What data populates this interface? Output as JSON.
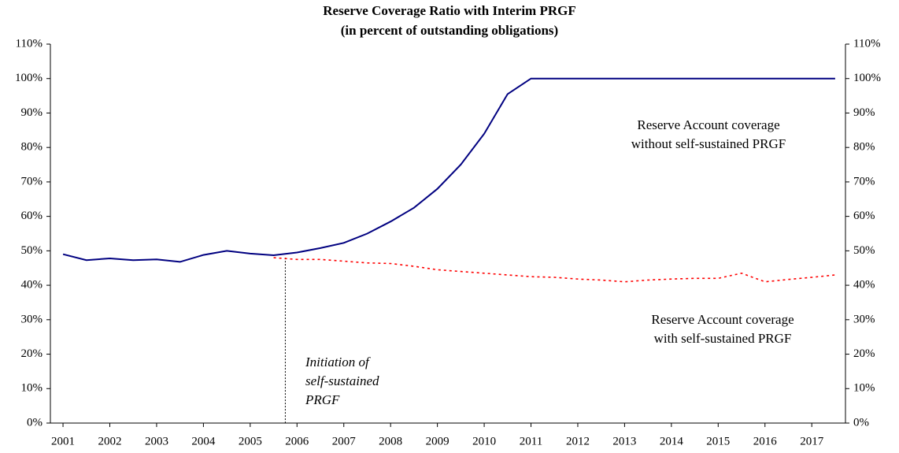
{
  "chart_data": {
    "type": "line",
    "title": [
      "Reserve Coverage Ratio with Interim PRGF",
      "(in percent of outstanding obligations)"
    ],
    "x": [
      2001,
      2001.5,
      2002,
      2002.5,
      2003,
      2003.5,
      2004,
      2004.5,
      2005,
      2005.5,
      2006,
      2006.5,
      2007,
      2007.5,
      2008,
      2008.5,
      2009,
      2009.5,
      2010,
      2010.5,
      2011,
      2011.5,
      2012,
      2012.5,
      2013,
      2013.5,
      2014,
      2014.5,
      2015,
      2015.5,
      2016,
      2016.5,
      2017,
      2017.5
    ],
    "series": [
      {
        "name": "Reserve Account coverage without self-sustained PRGF",
        "color": "#000080",
        "style": "solid",
        "values": [
          49,
          47.3,
          47.8,
          47.3,
          47.5,
          46.8,
          48.8,
          50,
          49.2,
          48.7,
          49.5,
          50.8,
          52.3,
          55,
          58.5,
          62.5,
          68,
          75,
          84,
          95.5,
          100,
          100,
          100,
          100,
          100,
          100,
          100,
          100,
          100,
          100,
          100,
          100,
          100,
          100
        ]
      },
      {
        "name": "Reserve Account coverage with self-sustained PRGF",
        "color": "#ff0000",
        "style": "dotted",
        "values": [
          null,
          null,
          null,
          null,
          null,
          null,
          null,
          null,
          null,
          48,
          47.5,
          47.5,
          47,
          46.5,
          46.3,
          45.5,
          44.5,
          44,
          43.5,
          43,
          42.5,
          42.3,
          41.8,
          41.5,
          41,
          41.5,
          41.8,
          42,
          42,
          43.5,
          41,
          41.7,
          42.3,
          43
        ]
      }
    ],
    "annotations": [
      {
        "lines": [
          "Reserve Account coverage",
          "without self-sustained PRGF"
        ],
        "italic": false
      },
      {
        "lines": [
          "Reserve Account coverage",
          "with self-sustained PRGF"
        ],
        "italic": false
      },
      {
        "lines": [
          "Initiation of",
          "self-sustained",
          "PRGF"
        ],
        "italic": true
      }
    ],
    "marker_x": 2005.75,
    "marker_top": 48,
    "xlim": [
      2000.73,
      2017.72
    ],
    "xticks": [
      2001,
      2002,
      2003,
      2004,
      2005,
      2006,
      2007,
      2008,
      2009,
      2010,
      2011,
      2012,
      2013,
      2014,
      2015,
      2016,
      2017
    ],
    "ylim": [
      0,
      110
    ],
    "yticks": [
      {
        "value": 0,
        "label": "0%"
      },
      {
        "value": 10,
        "label": "10%"
      },
      {
        "value": 20,
        "label": "20%"
      },
      {
        "value": 30,
        "label": "30%"
      },
      {
        "value": 40,
        "label": "40%"
      },
      {
        "value": 50,
        "label": "50%"
      },
      {
        "value": 60,
        "label": "60%"
      },
      {
        "value": 70,
        "label": "70%"
      },
      {
        "value": 80,
        "label": "80%"
      },
      {
        "value": 90,
        "label": "90%"
      },
      {
        "value": 100,
        "label": "100%"
      },
      {
        "value": 110,
        "label": "110%"
      }
    ],
    "y2lim": [
      0,
      110
    ],
    "y2ticks": [
      {
        "value": 0,
        "label": "0%"
      },
      {
        "value": 10,
        "label": "10%"
      },
      {
        "value": 20,
        "label": "20%"
      },
      {
        "value": 30,
        "label": "30%"
      },
      {
        "value": 40,
        "label": "40%"
      },
      {
        "value": 50,
        "label": "50%"
      },
      {
        "value": 60,
        "label": "60%"
      },
      {
        "value": 70,
        "label": "70%"
      },
      {
        "value": 80,
        "label": "80%"
      },
      {
        "value": 90,
        "label": "90%"
      },
      {
        "value": 100,
        "label": "100%"
      },
      {
        "value": 110,
        "label": "110%"
      }
    ],
    "grid": false
  }
}
